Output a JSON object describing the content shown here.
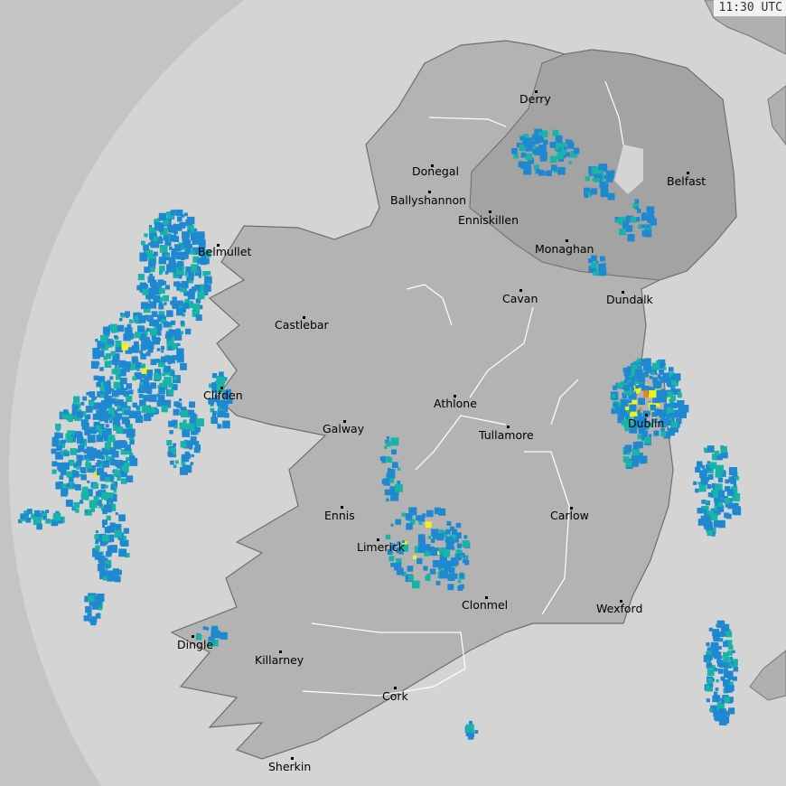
{
  "timestamp": "11:30 UTC",
  "colors": {
    "outside_coverage": "#c4c4c4",
    "sea": "#d4d4d4",
    "land_roi": "#b3b3b3",
    "land_ni": "#a3a3a3",
    "rivers": "#ffffff",
    "rain_light": "#1e88d0",
    "rain_moderate": "#18b4a8",
    "rain_heavy": "#f0f020",
    "rain_intense": "#f08020"
  },
  "cities": [
    {
      "name": "Derry"
    },
    {
      "name": "Donegal"
    },
    {
      "name": "Ballyshannon"
    },
    {
      "name": "Enniskillen"
    },
    {
      "name": "Belfast"
    },
    {
      "name": "Monaghan"
    },
    {
      "name": "Belmullet"
    },
    {
      "name": "Cavan"
    },
    {
      "name": "Dundalk"
    },
    {
      "name": "Castlebar"
    },
    {
      "name": "Athlone"
    },
    {
      "name": "Clifden"
    },
    {
      "name": "Dublin"
    },
    {
      "name": "Galway"
    },
    {
      "name": "Tullamore"
    },
    {
      "name": "Ennis"
    },
    {
      "name": "Carlow"
    },
    {
      "name": "Limerick"
    },
    {
      "name": "Clonmel"
    },
    {
      "name": "Wexford"
    },
    {
      "name": "Dingle"
    },
    {
      "name": "Killarney"
    },
    {
      "name": "Cork"
    },
    {
      "name": "Sherkin"
    }
  ]
}
